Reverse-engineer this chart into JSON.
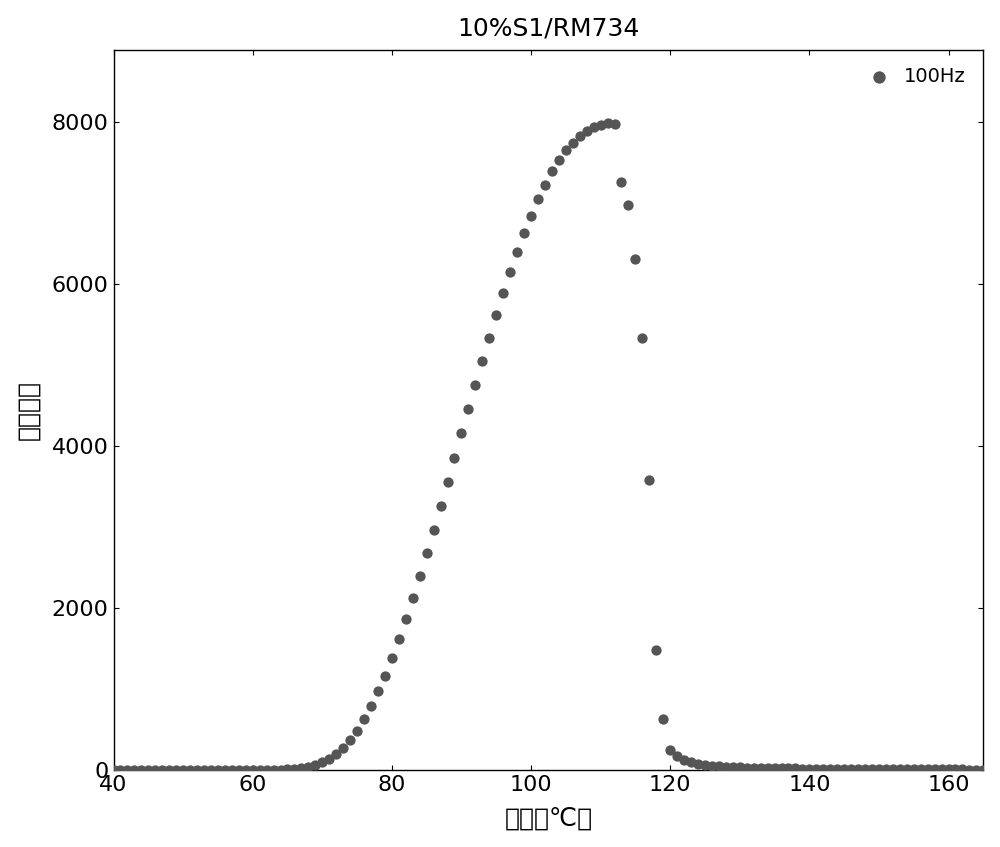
{
  "title": "10%S1/RM734",
  "xlabel": "温度（℃）",
  "ylabel": "介电常数",
  "xlim": [
    40,
    165
  ],
  "ylim": [
    0,
    8900
  ],
  "xticks": [
    40,
    60,
    80,
    100,
    120,
    140,
    160
  ],
  "yticks": [
    0,
    2000,
    4000,
    6000,
    8000
  ],
  "legend_label": "100Hz",
  "dot_color": "#555555",
  "dot_size": 55,
  "background_color": "#ffffff",
  "title_fontsize": 18,
  "axis_fontsize": 18,
  "tick_fontsize": 16,
  "legend_fontsize": 14,
  "x_data": [
    40,
    41,
    42,
    43,
    44,
    45,
    46,
    47,
    48,
    49,
    50,
    51,
    52,
    53,
    54,
    55,
    56,
    57,
    58,
    59,
    60,
    61,
    62,
    63,
    64,
    65,
    66,
    67,
    68,
    69,
    70,
    71,
    72,
    73,
    74,
    75,
    76,
    77,
    78,
    79,
    80,
    81,
    82,
    83,
    84,
    85,
    86,
    87,
    88,
    89,
    90,
    91,
    92,
    93,
    94,
    95,
    96,
    97,
    98,
    99,
    100,
    101,
    102,
    103,
    104,
    105,
    106,
    107,
    108,
    109,
    110,
    111,
    112,
    113,
    114,
    115,
    116,
    117,
    118,
    119,
    120,
    121,
    122,
    123,
    124,
    125,
    126,
    127,
    128,
    129,
    130,
    131,
    132,
    133,
    134,
    135,
    136,
    137,
    138,
    139,
    140,
    141,
    142,
    143,
    144,
    145,
    146,
    147,
    148,
    149,
    150,
    151,
    152,
    153,
    154,
    155,
    156,
    157,
    158,
    159,
    160,
    161,
    162,
    163,
    164,
    165
  ],
  "y_data": [
    5,
    5,
    5,
    5,
    5,
    5,
    5,
    5,
    5,
    5,
    5,
    5,
    5,
    5,
    5,
    5,
    5,
    5,
    5,
    5,
    5,
    5,
    5,
    5,
    8,
    12,
    18,
    28,
    42,
    65,
    100,
    145,
    205,
    280,
    375,
    490,
    630,
    790,
    975,
    1170,
    1390,
    1620,
    1870,
    2130,
    2400,
    2680,
    2970,
    3260,
    3560,
    3860,
    4160,
    4460,
    4760,
    5050,
    5340,
    5620,
    5890,
    6150,
    6400,
    6630,
    6850,
    7050,
    7230,
    7400,
    7540,
    7660,
    7750,
    7830,
    7890,
    7940,
    7970,
    7990,
    7980,
    7260,
    6980,
    6310,
    5340,
    3580,
    1480,
    630,
    250,
    175,
    130,
    100,
    82,
    68,
    57,
    50,
    44,
    40,
    36,
    33,
    30,
    28,
    27,
    26,
    25,
    24,
    23,
    22,
    21,
    20,
    19,
    18,
    18,
    17,
    17,
    16,
    16,
    15,
    15,
    14,
    14,
    14,
    13,
    13,
    13,
    12,
    12,
    12,
    11,
    11,
    11,
    10,
    10,
    10
  ]
}
